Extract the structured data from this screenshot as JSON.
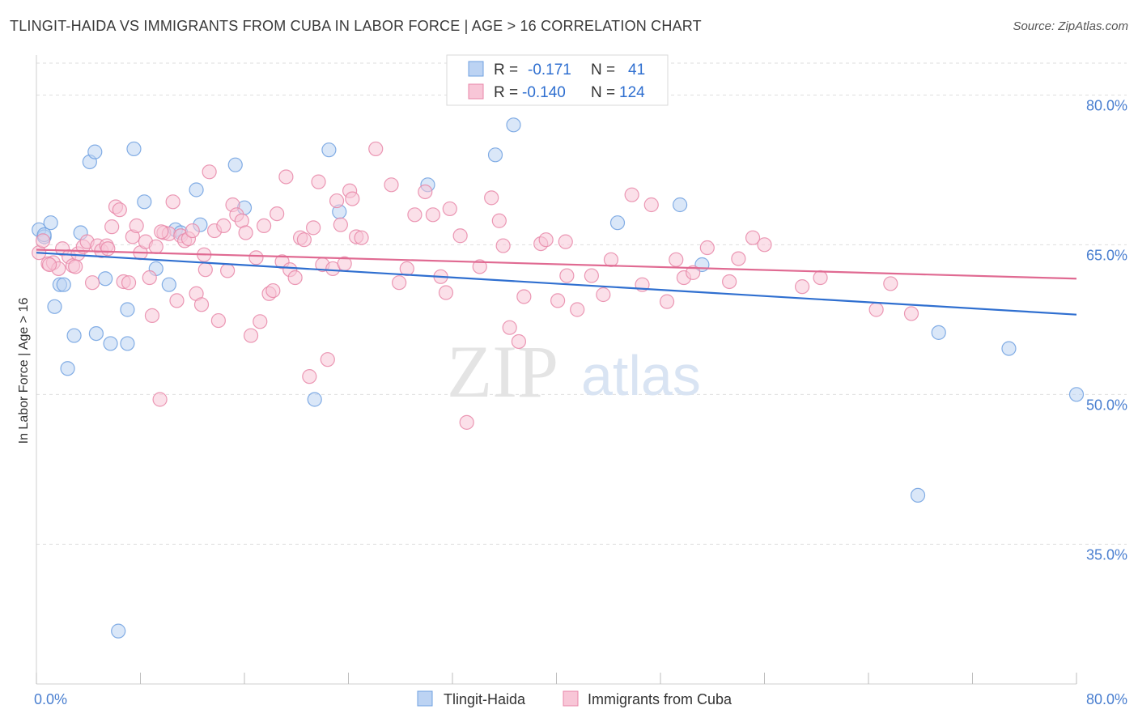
{
  "title": "TLINGIT-HAIDA VS IMMIGRANTS FROM CUBA IN LABOR FORCE | AGE > 16 CORRELATION CHART",
  "source": "Source: ZipAtlas.com",
  "watermark": {
    "zip": "ZIP",
    "atlas": "atlas"
  },
  "legend_stats": [
    {
      "r_label": "R =",
      "r_value": "-0.171",
      "n_label": "N =",
      "n_value": "41",
      "color": "#6fa0e0",
      "fill": "#bcd3f3"
    },
    {
      "r_label": "R =",
      "r_value": "-0.140",
      "n_label": "N =",
      "n_value": "124",
      "color": "#e887a8",
      "fill": "#f8c6d7"
    }
  ],
  "chart_data": {
    "type": "scatter",
    "xlabel": "",
    "ylabel": "In Labor Force | Age > 16",
    "xlim": [
      0,
      80
    ],
    "ylim": [
      21,
      84
    ],
    "x_tick_labels": [
      "0.0%",
      "80.0%"
    ],
    "y_ticks": [
      {
        "value": 80,
        "label": "80.0%"
      },
      {
        "value": 65,
        "label": "65.0%"
      },
      {
        "value": 50,
        "label": "50.0%"
      },
      {
        "value": 35,
        "label": "35.0%"
      }
    ],
    "series": [
      {
        "name": "Tlingit-Haida",
        "color": "#6fa0e0",
        "fill": "#bcd3f3",
        "line_color": "#2f6fd0",
        "trend": {
          "x": [
            0,
            80
          ],
          "y": [
            64.2,
            58.0
          ]
        },
        "points": [
          [
            0.2,
            66.5
          ],
          [
            0.6,
            65.8
          ],
          [
            1.1,
            67.2
          ],
          [
            1.4,
            58.8
          ],
          [
            1.8,
            61.0
          ],
          [
            2.1,
            61.0
          ],
          [
            2.4,
            52.6
          ],
          [
            2.9,
            55.9
          ],
          [
            3.4,
            66.2
          ],
          [
            4.1,
            73.3
          ],
          [
            4.5,
            74.3
          ],
          [
            4.6,
            56.1
          ],
          [
            5.3,
            61.6
          ],
          [
            5.7,
            55.1
          ],
          [
            6.3,
            26.3
          ],
          [
            7.0,
            58.5
          ],
          [
            7.0,
            55.1
          ],
          [
            7.5,
            74.6
          ],
          [
            8.3,
            69.3
          ],
          [
            9.2,
            62.6
          ],
          [
            10.2,
            61.0
          ],
          [
            10.7,
            66.5
          ],
          [
            11.1,
            66.2
          ],
          [
            12.3,
            70.5
          ],
          [
            12.6,
            67.0
          ],
          [
            15.3,
            73.0
          ],
          [
            16.0,
            68.7
          ],
          [
            21.4,
            49.5
          ],
          [
            22.5,
            74.5
          ],
          [
            23.3,
            68.3
          ],
          [
            30.1,
            71.0
          ],
          [
            35.3,
            74.0
          ],
          [
            36.7,
            77.0
          ],
          [
            44.7,
            67.2
          ],
          [
            49.5,
            69.0
          ],
          [
            51.2,
            63.0
          ],
          [
            69.4,
            56.2
          ],
          [
            67.8,
            39.9
          ],
          [
            74.8,
            54.6
          ],
          [
            80.0,
            50.0
          ],
          [
            0.6,
            66.0
          ]
        ]
      },
      {
        "name": "Immigrants from Cuba",
        "color": "#e887a8",
        "fill": "#f8c6d7",
        "line_color": "#e06a92",
        "trend": {
          "x": [
            0,
            80
          ],
          "y": [
            64.5,
            61.6
          ]
        },
        "points": [
          [
            0.2,
            64.2
          ],
          [
            0.5,
            65.4
          ],
          [
            0.9,
            63.1
          ],
          [
            1.3,
            63.2
          ],
          [
            1.7,
            62.6
          ],
          [
            2.0,
            64.6
          ],
          [
            2.5,
            63.8
          ],
          [
            2.8,
            62.9
          ],
          [
            3.2,
            64.1
          ],
          [
            3.6,
            64.8
          ],
          [
            3.9,
            65.3
          ],
          [
            4.3,
            61.2
          ],
          [
            4.7,
            64.9
          ],
          [
            5.0,
            64.4
          ],
          [
            5.4,
            64.9
          ],
          [
            5.8,
            66.8
          ],
          [
            6.1,
            68.8
          ],
          [
            6.4,
            68.5
          ],
          [
            6.7,
            61.3
          ],
          [
            7.1,
            61.2
          ],
          [
            7.4,
            65.8
          ],
          [
            7.7,
            66.9
          ],
          [
            8.0,
            64.2
          ],
          [
            8.4,
            65.3
          ],
          [
            8.7,
            61.7
          ],
          [
            8.9,
            57.9
          ],
          [
            9.2,
            64.8
          ],
          [
            9.5,
            49.5
          ],
          [
            9.8,
            66.2
          ],
          [
            10.2,
            66.1
          ],
          [
            10.5,
            69.3
          ],
          [
            10.8,
            59.4
          ],
          [
            11.1,
            65.9
          ],
          [
            11.4,
            65.4
          ],
          [
            11.7,
            65.6
          ],
          [
            12.0,
            66.4
          ],
          [
            12.3,
            60.1
          ],
          [
            12.7,
            59.0
          ],
          [
            13.0,
            62.5
          ],
          [
            13.3,
            72.3
          ],
          [
            13.7,
            66.4
          ],
          [
            14.0,
            57.4
          ],
          [
            14.4,
            66.9
          ],
          [
            14.7,
            62.4
          ],
          [
            15.1,
            69.0
          ],
          [
            15.4,
            68.0
          ],
          [
            15.8,
            67.4
          ],
          [
            16.1,
            66.2
          ],
          [
            16.5,
            55.9
          ],
          [
            16.9,
            63.7
          ],
          [
            17.2,
            57.3
          ],
          [
            17.5,
            66.9
          ],
          [
            17.9,
            60.1
          ],
          [
            18.2,
            60.4
          ],
          [
            18.5,
            68.1
          ],
          [
            18.9,
            63.3
          ],
          [
            19.2,
            71.8
          ],
          [
            19.5,
            62.5
          ],
          [
            19.9,
            61.7
          ],
          [
            20.3,
            65.7
          ],
          [
            20.6,
            65.5
          ],
          [
            21.0,
            51.8
          ],
          [
            21.3,
            66.7
          ],
          [
            21.7,
            71.3
          ],
          [
            22.0,
            63.0
          ],
          [
            22.4,
            53.5
          ],
          [
            22.8,
            62.6
          ],
          [
            23.1,
            69.4
          ],
          [
            23.4,
            67.0
          ],
          [
            23.7,
            63.1
          ],
          [
            24.1,
            70.4
          ],
          [
            24.6,
            65.8
          ],
          [
            25.0,
            65.7
          ],
          [
            26.1,
            74.6
          ],
          [
            27.3,
            71.0
          ],
          [
            27.9,
            61.2
          ],
          [
            28.5,
            62.6
          ],
          [
            29.1,
            68.0
          ],
          [
            29.9,
            70.3
          ],
          [
            30.5,
            68.0
          ],
          [
            31.1,
            61.8
          ],
          [
            31.5,
            60.2
          ],
          [
            31.8,
            68.6
          ],
          [
            32.6,
            65.9
          ],
          [
            33.1,
            47.2
          ],
          [
            34.1,
            62.8
          ],
          [
            35.0,
            69.7
          ],
          [
            35.6,
            67.4
          ],
          [
            35.9,
            64.9
          ],
          [
            36.4,
            56.7
          ],
          [
            37.1,
            55.3
          ],
          [
            37.5,
            59.8
          ],
          [
            38.8,
            65.1
          ],
          [
            39.2,
            65.5
          ],
          [
            40.1,
            59.4
          ],
          [
            40.7,
            65.3
          ],
          [
            40.8,
            61.9
          ],
          [
            41.6,
            58.5
          ],
          [
            42.7,
            61.9
          ],
          [
            43.6,
            60.0
          ],
          [
            44.2,
            63.5
          ],
          [
            45.8,
            70.0
          ],
          [
            46.6,
            61.0
          ],
          [
            47.3,
            69.0
          ],
          [
            48.5,
            59.3
          ],
          [
            49.2,
            63.5
          ],
          [
            49.8,
            61.7
          ],
          [
            50.5,
            62.2
          ],
          [
            51.6,
            64.7
          ],
          [
            53.3,
            61.3
          ],
          [
            54.0,
            63.6
          ],
          [
            55.1,
            65.7
          ],
          [
            56.0,
            65.0
          ],
          [
            58.9,
            60.8
          ],
          [
            60.3,
            61.7
          ],
          [
            64.6,
            58.5
          ],
          [
            65.7,
            61.1
          ],
          [
            67.3,
            58.1
          ],
          [
            1.0,
            63.0
          ],
          [
            3.0,
            62.8
          ],
          [
            5.5,
            64.6
          ],
          [
            9.6,
            66.3
          ],
          [
            12.9,
            64.0
          ],
          [
            24.3,
            69.6
          ]
        ]
      }
    ]
  }
}
